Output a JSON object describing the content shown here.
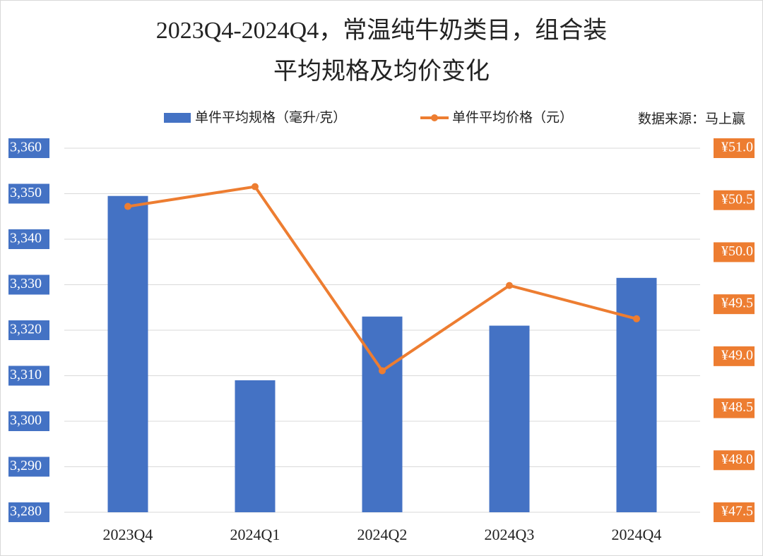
{
  "chart_data": {
    "type": "bar_line",
    "title": "2023Q4-2024Q4，常温纯牛奶类目，组合装",
    "subtitle": "平均规格及均价变化",
    "source": "数据来源：马上赢",
    "categories": [
      "2023Q4",
      "2024Q1",
      "2024Q2",
      "2024Q3",
      "2024Q4"
    ],
    "series": [
      {
        "name": "单件平均规格（毫升/克）",
        "type": "bar",
        "color": "#4472c4",
        "values": [
          3349.5,
          3309,
          3323,
          3321,
          3331.5
        ]
      },
      {
        "name": "单件平均价格（元）",
        "type": "line",
        "axis": "y2",
        "color": "#ed7d31",
        "values": [
          50.44,
          50.63,
          48.86,
          49.68,
          49.36
        ]
      }
    ],
    "ylim": [
      3280,
      3360
    ],
    "yticks": [
      {
        "value": 3280,
        "label": "3,280"
      },
      {
        "value": 3290,
        "label": "3,290"
      },
      {
        "value": 3300,
        "label": "3,300"
      },
      {
        "value": 3310,
        "label": "3,310"
      },
      {
        "value": 3320,
        "label": "3,320"
      },
      {
        "value": 3330,
        "label": "3,330"
      },
      {
        "value": 3340,
        "label": "3,340"
      },
      {
        "value": 3350,
        "label": "3,350"
      },
      {
        "value": 3360,
        "label": "3,360"
      }
    ],
    "y2lim": [
      47.5,
      51
    ],
    "y2ticks": [
      {
        "value": 47.5,
        "label": "¥47.5"
      },
      {
        "value": 48,
        "label": "¥48.0"
      },
      {
        "value": 48.5,
        "label": "¥48.5"
      },
      {
        "value": 49,
        "label": "¥49.0"
      },
      {
        "value": 49.5,
        "label": "¥49.5"
      },
      {
        "value": 50,
        "label": "¥50.0"
      },
      {
        "value": 50.5,
        "label": "¥50.5"
      },
      {
        "value": 51,
        "label": "¥51.0"
      }
    ],
    "grid": true
  }
}
